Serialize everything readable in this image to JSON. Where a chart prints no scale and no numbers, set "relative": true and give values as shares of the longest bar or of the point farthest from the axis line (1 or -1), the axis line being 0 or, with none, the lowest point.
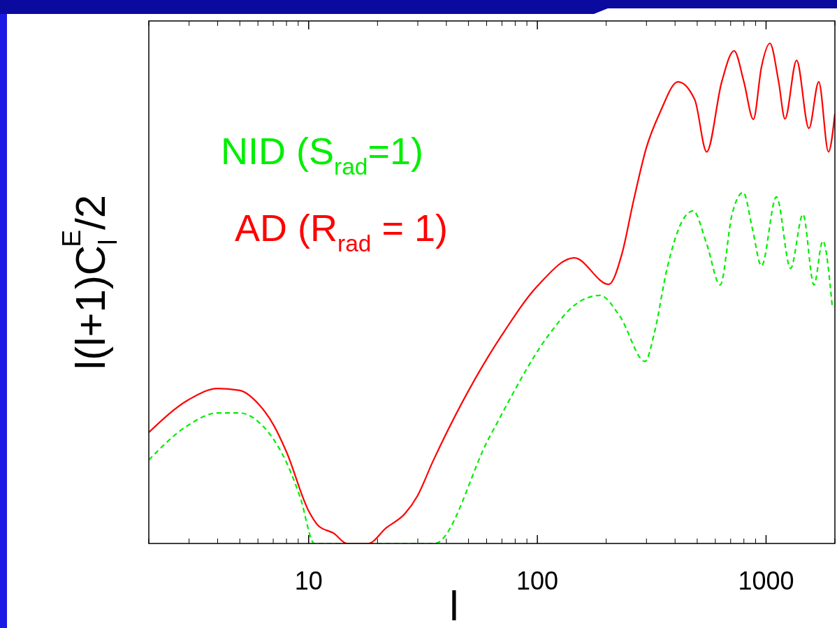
{
  "chart_data": {
    "type": "line",
    "relative": true,
    "log": "x",
    "xlabel": "l",
    "ylabel": "l(l+1)C$_{l}$$^{E}$/2",
    "xlim": [
      2,
      2000
    ],
    "xticks": [
      10,
      100,
      1000
    ],
    "tick_labels": "x",
    "series": [
      {
        "name": "NID (S$_{rad}$=1)",
        "color": "#00ee00",
        "line_style": "dashed",
        "x": [
          2,
          2.94,
          4,
          5,
          6,
          7,
          8,
          9.2,
          10.6,
          35.5,
          61.6,
          113,
          145,
          188,
          229,
          296,
          324,
          370,
          427,
          480,
          550,
          630,
          710,
          795,
          870,
          955,
          1110,
          1280,
          1450,
          1620,
          1770,
          1950
        ],
        "values": [
          0.167,
          0.235,
          0.261,
          0.261,
          0.244,
          0.209,
          0.162,
          0.091,
          0,
          0,
          0.212,
          0.419,
          0.476,
          0.496,
          0.455,
          0.364,
          0.419,
          0.552,
          0.642,
          0.665,
          0.599,
          0.517,
          0.658,
          0.702,
          0.631,
          0.555,
          0.693,
          0.55,
          0.658,
          0.517,
          0.605,
          0.471
        ]
      },
      {
        "name": "AD (R$_{rad}$ = 1)",
        "color": "#ff0000",
        "line_style": "solid",
        "x": [
          2,
          3,
          4,
          5,
          6,
          7,
          8,
          10,
          11,
          12.9,
          14.7,
          18.2,
          21.8,
          26.4,
          29.8,
          35,
          61.6,
          69.8,
          102,
          145,
          205,
          234,
          263,
          300,
          344,
          412,
          488,
          550,
          640,
          725,
          800,
          880,
          955,
          1040,
          1135,
          1210,
          1360,
          1540,
          1700,
          1875,
          2000
        ],
        "values": [
          0.222,
          0.288,
          0.31,
          0.306,
          0.28,
          0.238,
          0.183,
          0.065,
          0.036,
          0.02,
          0,
          0,
          0.031,
          0.06,
          0.094,
          0.165,
          0.377,
          0.416,
          0.519,
          0.571,
          0.518,
          0.578,
          0.684,
          0.792,
          0.862,
          0.923,
          0.887,
          0.783,
          0.923,
          0.985,
          0.923,
          0.848,
          0.953,
          1,
          0.923,
          0.849,
          0.966,
          0.83,
          0.923,
          0.783,
          0.859
        ]
      }
    ]
  }
}
